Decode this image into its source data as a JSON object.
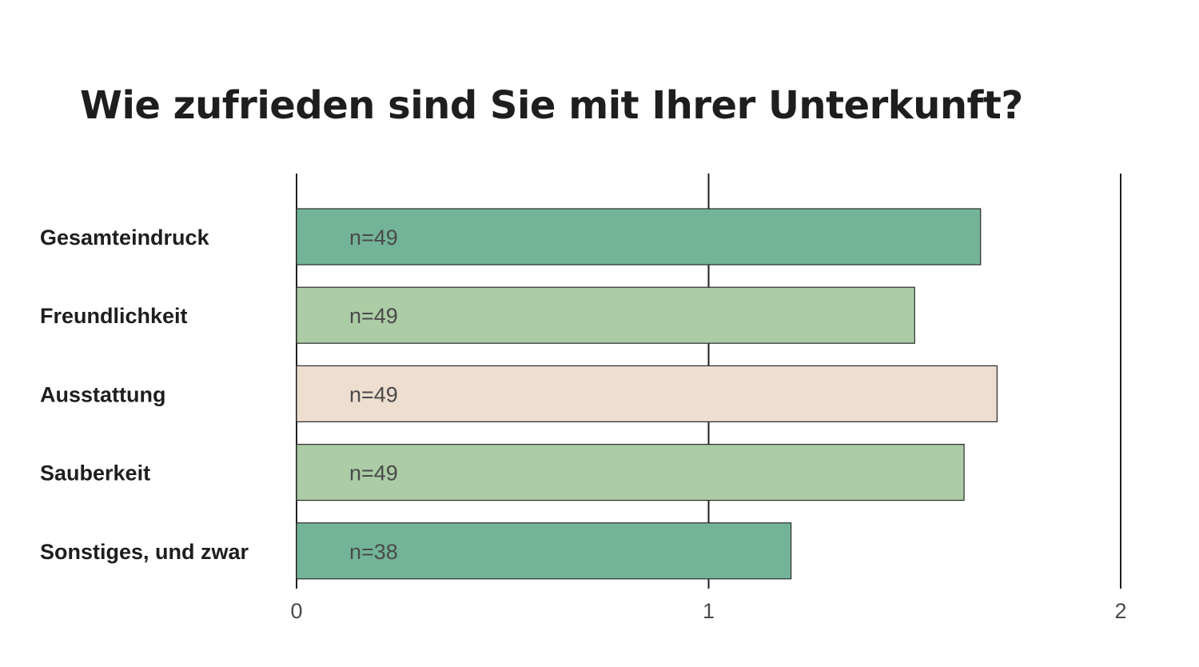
{
  "chart_data": {
    "type": "bar",
    "orientation": "horizontal",
    "title": "Wie zufrieden sind Sie mit Ihrer Unterkunft?",
    "categories": [
      "Gesamteindruck",
      "Freundlichkeit",
      "Ausstattung",
      "Sauberkeit",
      "Sonstiges, und zwar"
    ],
    "values": [
      1.66,
      1.5,
      1.7,
      1.62,
      1.2
    ],
    "bar_labels": [
      "n=49",
      "n=49",
      "n=49",
      "n=49",
      "n=38"
    ],
    "colors": [
      "#73b499",
      "#abcca5",
      "#edded0",
      "#abcca5",
      "#73b499"
    ],
    "xlim": [
      0,
      2
    ],
    "xticks": [
      "0",
      "1",
      "2"
    ],
    "grid": true
  }
}
